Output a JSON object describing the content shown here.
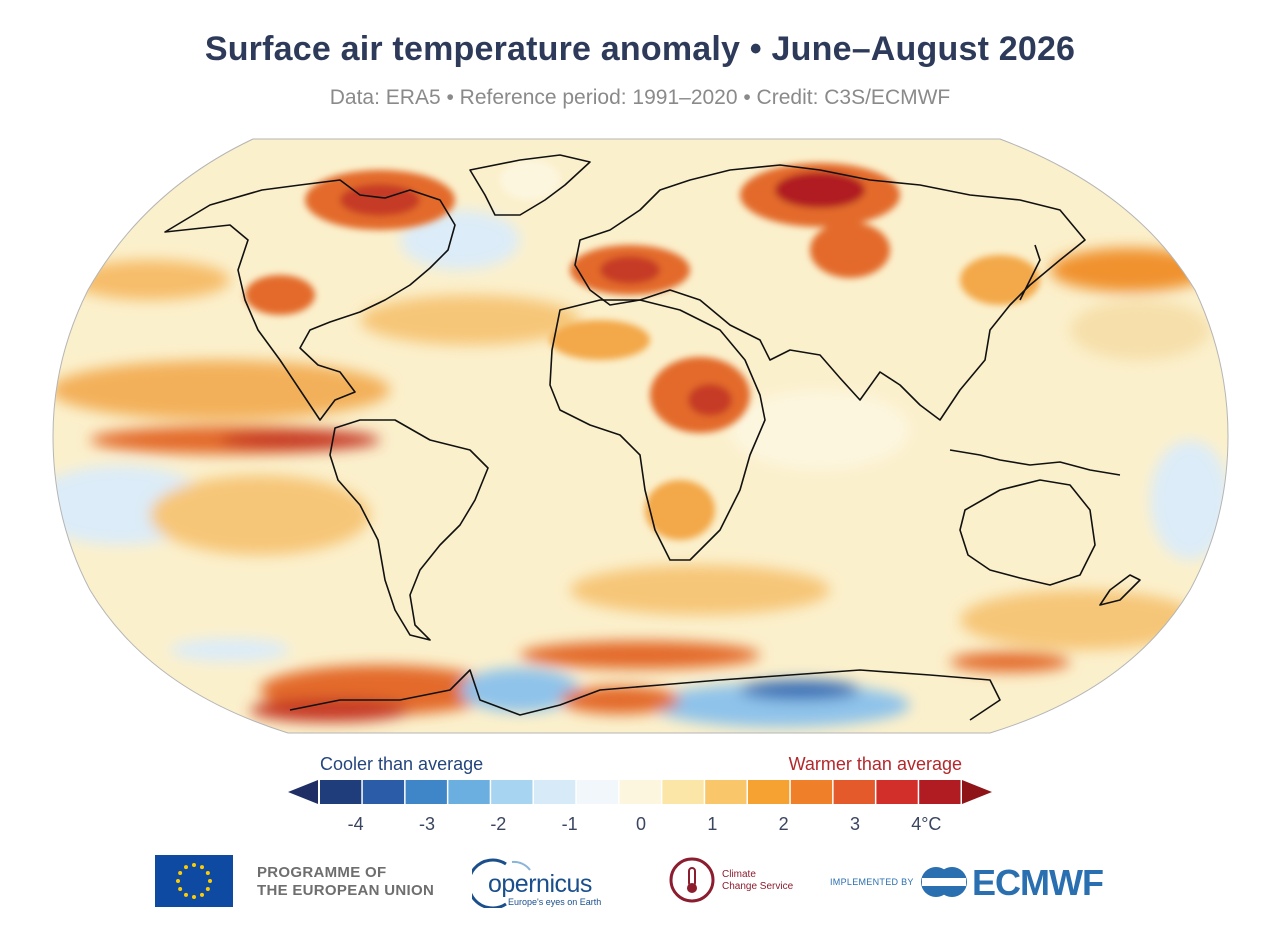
{
  "header": {
    "title": "Surface air temperature anomaly • June–August 2026",
    "subtitle": "Data: ERA5 • Reference period: 1991–2020 • Credit: C3S/ECMWF"
  },
  "legend": {
    "cool_label": "Cooler than average",
    "warm_label": "Warmer than average",
    "ticks": [
      "-4",
      "-3",
      "-2",
      "-1",
      "0",
      "1",
      "2",
      "3",
      "4°C"
    ],
    "colors": [
      "#1f3d7a",
      "#2b5ca8",
      "#3f86c8",
      "#6bafe0",
      "#a7d4f0",
      "#d6eaf8",
      "#f2f7fb",
      "#fdf6df",
      "#fbe6a8",
      "#f9c66a",
      "#f6a233",
      "#f07f2a",
      "#e45a2a",
      "#d22f2a",
      "#b01c22"
    ],
    "end_cool": "#1f2f66",
    "end_warm": "#8f1418"
  },
  "map": {
    "projection": "Robinson",
    "field_colors": {
      "ocean_base": "#fbf0cc",
      "warm_light": "#f8d58a",
      "warm_mid": "#f3a84a",
      "warm_strong": "#e36a2c",
      "hot": "#c63a25",
      "cool_light": "#dcecf8",
      "cool_mid": "#8fc3ea",
      "cool_strong": "#3a6fb6"
    }
  },
  "footer": {
    "eu_text_line1": "PROGRAMME OF",
    "eu_text_line2": "THE EUROPEAN UNION",
    "copernicus_word": "opernicus",
    "copernicus_tagline": "Europe's eyes on Earth",
    "c3s_line1": "Climate",
    "c3s_line2": "Change Service",
    "implemented_by": "IMPLEMENTED BY",
    "ecmwf_word": "ECMWF",
    "eu_flag_color": "#0e4aa1",
    "copernicus_color": "#1a4f8c",
    "c3s_color": "#8c1d2f",
    "ecmwf_color": "#2a6fb0"
  }
}
